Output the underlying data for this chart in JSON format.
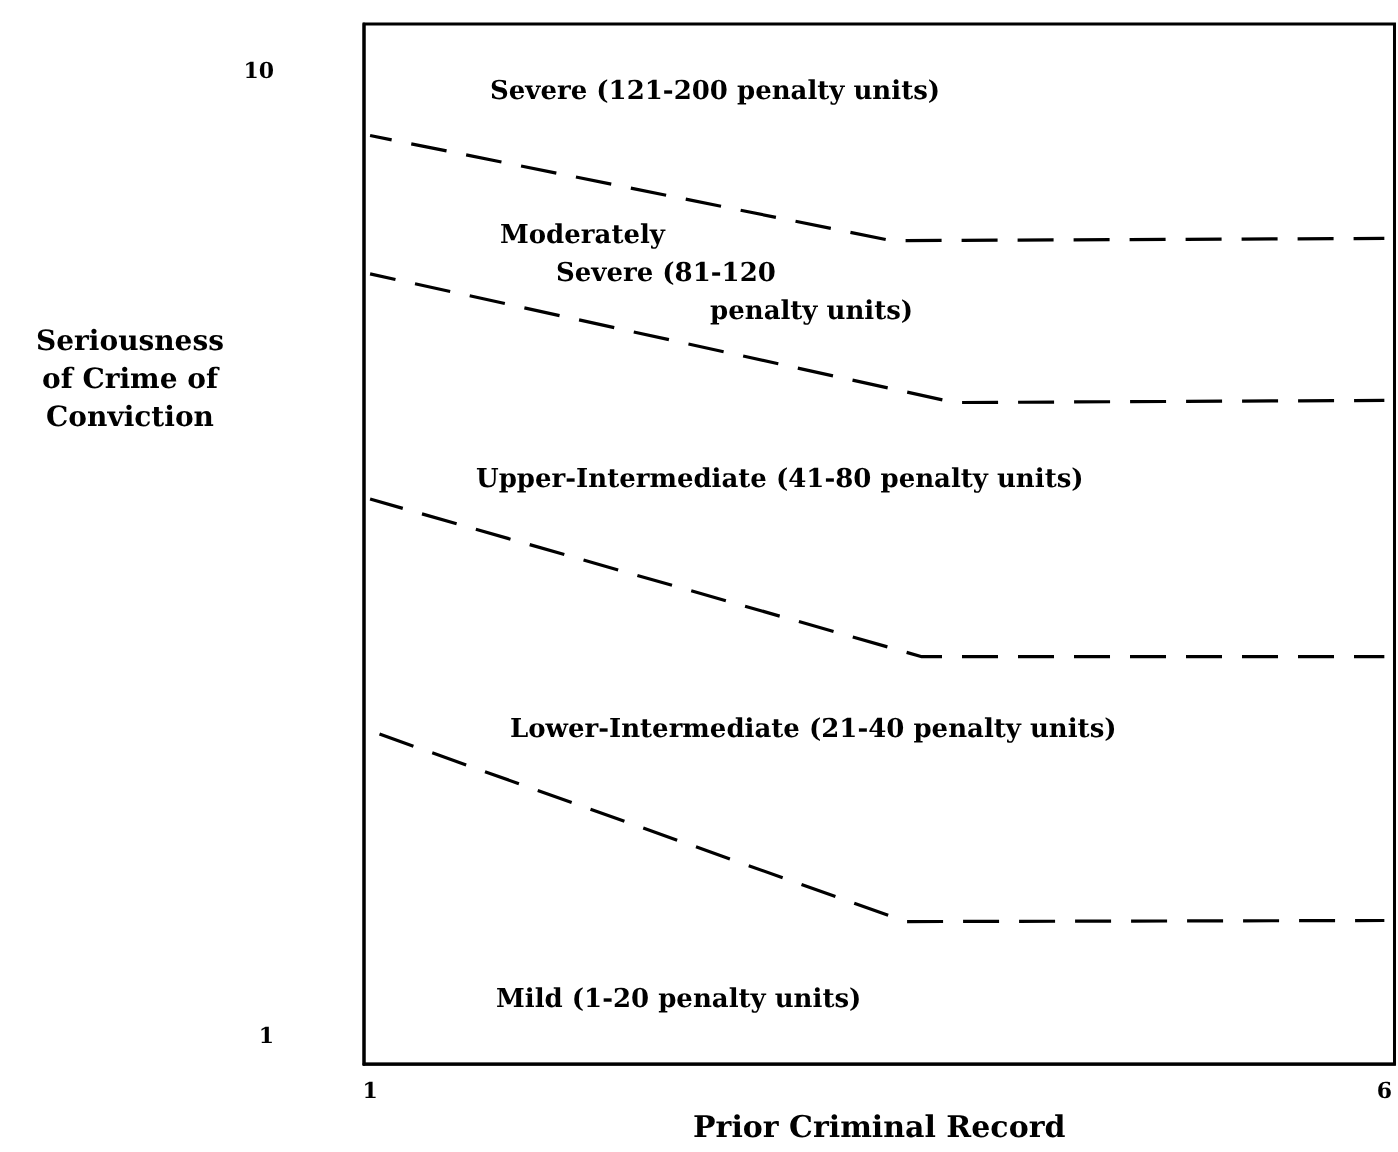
{
  "chart_data": {
    "type": "line",
    "xlabel": "Prior Criminal Record",
    "ylabel": "Seriousness\nof Crime of\nConviction",
    "xlim": [
      0.97,
      6.05
    ],
    "xticks": [
      1,
      6
    ],
    "ylim": [
      0.74,
      10.44
    ],
    "yticks": [
      1,
      10
    ],
    "grid": false,
    "marker": "none",
    "line_style": "dashed",
    "series": [
      {
        "color": "#000000",
        "x": [
          1,
          3.57,
          6
        ],
        "values": [
          9.4,
          8.42,
          8.44
        ]
      },
      {
        "color": "#000000",
        "x": [
          1,
          3.88,
          6
        ],
        "values": [
          8.11,
          6.91,
          6.93
        ]
      },
      {
        "color": "#000000",
        "x": [
          1,
          3.72,
          6
        ],
        "values": [
          6.01,
          4.54,
          4.54
        ]
      },
      {
        "color": "#000000",
        "x": [
          1,
          3.64,
          6
        ],
        "values": [
          3.85,
          2.07,
          2.08
        ]
      }
    ],
    "annotations": [
      "Severe (121-200 penalty units)",
      "Moderately\nSevere (81-120\npenalty units)",
      "Upper-Intermediate (41-80 penalty units)",
      "Lower-Intermediate (21-40 penalty units)",
      "Mild (1-20 penalty units)"
    ]
  }
}
